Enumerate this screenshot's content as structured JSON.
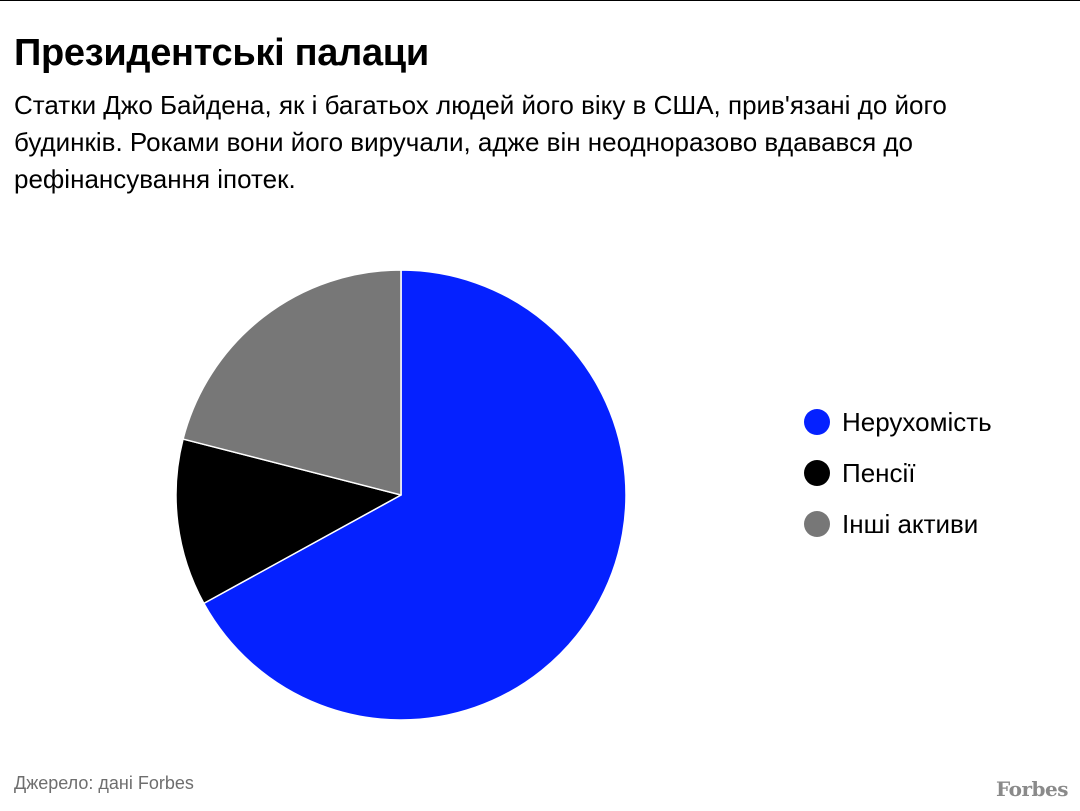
{
  "header": {
    "title": "Президентські палаци",
    "subtitle": "Статки Джо Байдена, як і багатьох людей його віку в США, прив'язані до його будинків. Роками вони його виручали, адже він неодноразово вдавався до рефінансування іпотек."
  },
  "chart_data": {
    "type": "pie",
    "title": "Президентські палаци",
    "categories": [
      "Нерухомість",
      "Пенсії",
      "Інші активи"
    ],
    "values": [
      67,
      12,
      21
    ],
    "colors": [
      "#0521ff",
      "#000000",
      "#777777"
    ],
    "start_angle_deg": 0,
    "direction": "clockwise",
    "legend_position": "right"
  },
  "legend": {
    "items": [
      {
        "label": "Нерухомість",
        "color": "#0521ff"
      },
      {
        "label": "Пенсії",
        "color": "#000000"
      },
      {
        "label": "Інші активи",
        "color": "#777777"
      }
    ]
  },
  "footer": {
    "source": "Джерело: дані Forbes",
    "brand": "Forbes"
  }
}
